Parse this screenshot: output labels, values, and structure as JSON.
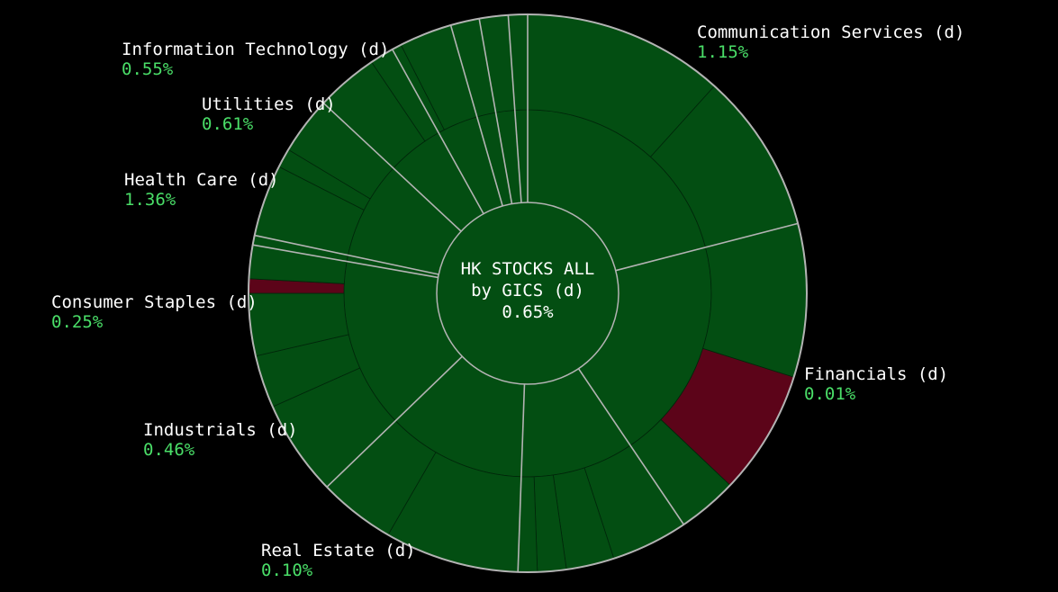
{
  "center": {
    "line1": "HK STOCKS ALL",
    "line2": "by GICS (d)",
    "value": "0.65%"
  },
  "colors": {
    "background": "#000000",
    "positive_fill": "#034e12",
    "negative_fill": "#5c0419",
    "separator": "#b3b3b3",
    "positive_text": "#4ade68"
  },
  "sectors": [
    {
      "name": "Communication Services (d)",
      "change": "1.15%"
    },
    {
      "name": "Financials (d)",
      "change": "0.01%"
    },
    {
      "name": "Real Estate (d)",
      "change": "0.10%"
    },
    {
      "name": "Industrials (d)",
      "change": "0.46%"
    },
    {
      "name": "Consumer Staples (d)",
      "change": "0.25%"
    },
    {
      "name": "Health Care (d)",
      "change": "1.36%"
    },
    {
      "name": "Utilities (d)",
      "change": "0.61%"
    },
    {
      "name": "Information Technology (d)",
      "change": "0.55%"
    }
  ],
  "chart_data": {
    "type": "sunburst",
    "title": "HK STOCKS ALL by GICS (d)",
    "root_value": "0.65%",
    "categories": [
      "Communication Services (d)",
      "Financials (d)",
      "Real Estate (d)",
      "Industrials (d)",
      "Consumer Staples (d)",
      "Health Care (d)",
      "Utilities (d)",
      "Information Technology (d)"
    ],
    "values": [
      1.15,
      0.01,
      0.1,
      0.46,
      0.25,
      1.36,
      0.61,
      0.55
    ],
    "units": "%"
  }
}
